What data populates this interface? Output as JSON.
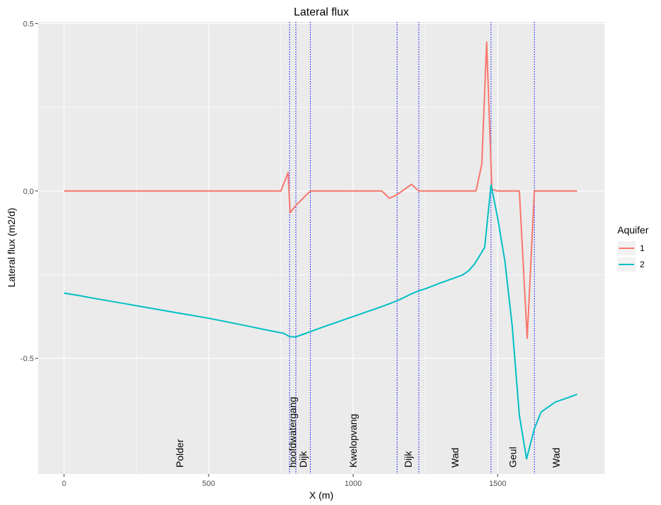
{
  "chart_data": {
    "type": "line",
    "title": "Lateral flux",
    "xlabel": "X (m)",
    "ylabel": "Lateral flux (m2/d)",
    "xlim": [
      -90,
      1870
    ],
    "ylim": [
      -0.845,
      0.505
    ],
    "x_ticks": [
      0,
      500,
      1000,
      1500
    ],
    "x_tick_labels": [
      "0",
      "500",
      "1000",
      "1500"
    ],
    "y_ticks": [
      -0.5,
      0.0,
      0.5
    ],
    "y_tick_labels": [
      "-0.5",
      "0.0",
      "0.5"
    ],
    "grid": true,
    "legend": {
      "title": "Aquifer",
      "position": "right"
    },
    "vlines": [
      780,
      802,
      852,
      1152,
      1227,
      1477,
      1627
    ],
    "vline_color": "#0000ff",
    "regions": [
      {
        "x": 400,
        "label": "Polder"
      },
      {
        "x": 790,
        "label": "hoofdwatergang"
      },
      {
        "x": 827,
        "label": "Dijk"
      },
      {
        "x": 1000,
        "label": "Kwelopvang"
      },
      {
        "x": 1190,
        "label": "Dijk"
      },
      {
        "x": 1352,
        "label": "Wad"
      },
      {
        "x": 1552,
        "label": "Geul"
      },
      {
        "x": 1702,
        "label": "Wad"
      }
    ],
    "series": [
      {
        "name": "1",
        "color": "#f8766d",
        "points": [
          [
            0,
            0.0
          ],
          [
            750,
            0.0
          ],
          [
            775,
            0.055
          ],
          [
            782,
            -0.065
          ],
          [
            800,
            -0.045
          ],
          [
            852,
            0.0
          ],
          [
            1100,
            0.0
          ],
          [
            1125,
            -0.022
          ],
          [
            1150,
            -0.012
          ],
          [
            1202,
            0.02
          ],
          [
            1227,
            0.0
          ],
          [
            1425,
            0.0
          ],
          [
            1445,
            0.08
          ],
          [
            1462,
            0.445
          ],
          [
            1480,
            0.005
          ],
          [
            1500,
            0.0
          ],
          [
            1575,
            0.0
          ],
          [
            1602,
            -0.44
          ],
          [
            1627,
            0.0
          ],
          [
            1650,
            0.0
          ],
          [
            1775,
            0.0
          ]
        ]
      },
      {
        "name": "2",
        "color": "#00bfc4",
        "points": [
          [
            0,
            -0.305
          ],
          [
            50,
            -0.312
          ],
          [
            100,
            -0.32
          ],
          [
            200,
            -0.335
          ],
          [
            300,
            -0.35
          ],
          [
            400,
            -0.365
          ],
          [
            500,
            -0.38
          ],
          [
            600,
            -0.397
          ],
          [
            700,
            -0.415
          ],
          [
            760,
            -0.425
          ],
          [
            780,
            -0.435
          ],
          [
            800,
            -0.436
          ],
          [
            820,
            -0.43
          ],
          [
            852,
            -0.42
          ],
          [
            900,
            -0.405
          ],
          [
            1000,
            -0.375
          ],
          [
            1100,
            -0.345
          ],
          [
            1152,
            -0.328
          ],
          [
            1200,
            -0.308
          ],
          [
            1227,
            -0.298
          ],
          [
            1250,
            -0.292
          ],
          [
            1300,
            -0.275
          ],
          [
            1350,
            -0.26
          ],
          [
            1380,
            -0.25
          ],
          [
            1400,
            -0.238
          ],
          [
            1420,
            -0.218
          ],
          [
            1440,
            -0.19
          ],
          [
            1455,
            -0.168
          ],
          [
            1477,
            0.018
          ],
          [
            1500,
            -0.08
          ],
          [
            1525,
            -0.21
          ],
          [
            1550,
            -0.4
          ],
          [
            1575,
            -0.67
          ],
          [
            1600,
            -0.8
          ],
          [
            1627,
            -0.71
          ],
          [
            1650,
            -0.66
          ],
          [
            1700,
            -0.63
          ],
          [
            1750,
            -0.615
          ],
          [
            1775,
            -0.607
          ]
        ]
      }
    ]
  }
}
